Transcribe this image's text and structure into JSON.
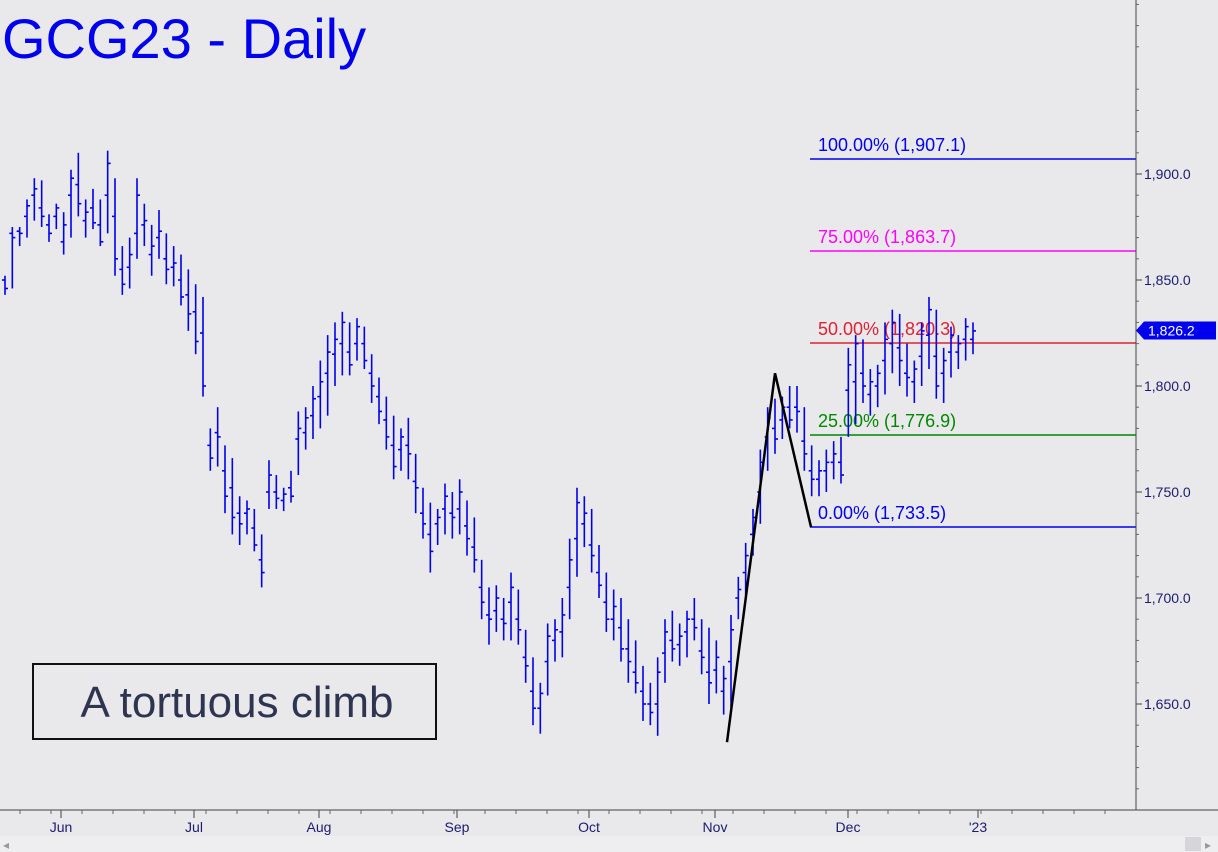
{
  "chart_data": {
    "type": "ohlc",
    "title": "GCG23 - Daily",
    "annotation": "A tortuous climb",
    "y_axis": {
      "range": [
        1605,
        1985
      ],
      "ticks": [
        1650,
        1700,
        1750,
        1800,
        1850,
        1900
      ],
      "tick_labels": [
        "1,650.0",
        "1,700.0",
        "1,750.0",
        "1,800.0",
        "1,850.0",
        "1,900.0"
      ]
    },
    "x_axis": {
      "months": [
        "Jun",
        "Jul",
        "Aug",
        "Sep",
        "Oct",
        "Nov",
        "Dec",
        "'23"
      ]
    },
    "last_price": {
      "value": 1826.2,
      "label": "1,826.2"
    },
    "fib_levels": [
      {
        "label": "100.00% (1,907.1)",
        "value": 1907.1,
        "color": "#0000ee"
      },
      {
        "label": "75.00% (1,863.7)",
        "value": 1863.7,
        "color": "#ff00ff"
      },
      {
        "label": "50.00% (1,820.3)",
        "value": 1820.3,
        "color": "#dd2233"
      },
      {
        "label": "25.00% (1,776.9)",
        "value": 1776.9,
        "color": "#008800"
      },
      {
        "label": "0.00% (1,733.5)",
        "value": 1733.5,
        "color": "#0000ee"
      }
    ],
    "pattern_points": [
      {
        "date": "Nov 3",
        "value": 1632
      },
      {
        "date": "Nov 15",
        "value": 1806
      },
      {
        "date": "Nov 23",
        "value": 1733.5
      }
    ],
    "bars": [
      [
        1852,
        1843,
        1850,
        1846
      ],
      [
        1875,
        1846,
        1872,
        1870
      ],
      [
        1875,
        1866,
        1873,
        1872
      ],
      [
        1888,
        1870,
        1880,
        1885
      ],
      [
        1898,
        1878,
        1890,
        1893
      ],
      [
        1897,
        1875,
        1884,
        1880
      ],
      [
        1881,
        1868,
        1876,
        1872
      ],
      [
        1886,
        1874,
        1880,
        1884
      ],
      [
        1882,
        1862,
        1868,
        1876
      ],
      [
        1902,
        1870,
        1890,
        1898
      ],
      [
        1910,
        1880,
        1895,
        1886
      ],
      [
        1888,
        1870,
        1878,
        1882
      ],
      [
        1893,
        1874,
        1884,
        1877
      ],
      [
        1888,
        1866,
        1876,
        1868
      ],
      [
        1911,
        1872,
        1890,
        1905
      ],
      [
        1898,
        1852,
        1880,
        1860
      ],
      [
        1866,
        1843,
        1855,
        1848
      ],
      [
        1870,
        1846,
        1856,
        1862
      ],
      [
        1898,
        1860,
        1872,
        1890
      ],
      [
        1886,
        1866,
        1876,
        1878
      ],
      [
        1876,
        1852,
        1862,
        1866
      ],
      [
        1883,
        1860,
        1870,
        1873
      ],
      [
        1872,
        1848,
        1860,
        1855
      ],
      [
        1866,
        1847,
        1856,
        1858
      ],
      [
        1862,
        1838,
        1850,
        1842
      ],
      [
        1855,
        1826,
        1843,
        1834
      ],
      [
        1848,
        1815,
        1835,
        1821
      ],
      [
        1842,
        1795,
        1825,
        1800
      ],
      [
        1780,
        1760,
        1772,
        1766
      ],
      [
        1790,
        1762,
        1778,
        1776
      ],
      [
        1772,
        1740,
        1760,
        1748
      ],
      [
        1766,
        1730,
        1752,
        1738
      ],
      [
        1748,
        1725,
        1740,
        1735
      ],
      [
        1746,
        1730,
        1740,
        1742
      ],
      [
        1742,
        1722,
        1733,
        1725
      ],
      [
        1730,
        1705,
        1718,
        1712
      ],
      [
        1765,
        1742,
        1750,
        1758
      ],
      [
        1758,
        1742,
        1750,
        1747
      ],
      [
        1752,
        1741,
        1746,
        1749
      ],
      [
        1760,
        1745,
        1752,
        1748
      ],
      [
        1788,
        1758,
        1775,
        1780
      ],
      [
        1790,
        1770,
        1778,
        1785
      ],
      [
        1800,
        1775,
        1786,
        1794
      ],
      [
        1812,
        1780,
        1795,
        1802
      ],
      [
        1824,
        1786,
        1806,
        1816
      ],
      [
        1830,
        1800,
        1815,
        1822
      ],
      [
        1835,
        1805,
        1820,
        1830
      ],
      [
        1830,
        1805,
        1816,
        1810
      ],
      [
        1832,
        1812,
        1820,
        1828
      ],
      [
        1828,
        1808,
        1820,
        1812
      ],
      [
        1815,
        1792,
        1806,
        1800
      ],
      [
        1804,
        1782,
        1795,
        1788
      ],
      [
        1795,
        1770,
        1784,
        1776
      ],
      [
        1786,
        1756,
        1772,
        1762
      ],
      [
        1780,
        1760,
        1770,
        1776
      ],
      [
        1785,
        1756,
        1772,
        1768
      ],
      [
        1768,
        1740,
        1755,
        1752
      ],
      [
        1752,
        1728,
        1740,
        1735
      ],
      [
        1745,
        1712,
        1730,
        1722
      ],
      [
        1742,
        1725,
        1735,
        1738
      ],
      [
        1754,
        1730,
        1742,
        1748
      ],
      [
        1750,
        1728,
        1740,
        1738
      ],
      [
        1756,
        1730,
        1742,
        1750
      ],
      [
        1746,
        1720,
        1734,
        1728
      ],
      [
        1738,
        1712,
        1724,
        1718
      ],
      [
        1718,
        1690,
        1705,
        1698
      ],
      [
        1705,
        1678,
        1692,
        1690
      ],
      [
        1706,
        1684,
        1694,
        1700
      ],
      [
        1700,
        1680,
        1690,
        1688
      ],
      [
        1712,
        1680,
        1698,
        1705
      ],
      [
        1704,
        1678,
        1690,
        1685
      ],
      [
        1685,
        1660,
        1672,
        1668
      ],
      [
        1672,
        1640,
        1656,
        1648
      ],
      [
        1660,
        1636,
        1648,
        1655
      ],
      [
        1688,
        1654,
        1670,
        1682
      ],
      [
        1690,
        1670,
        1680,
        1685
      ],
      [
        1700,
        1672,
        1684,
        1692
      ],
      [
        1728,
        1690,
        1705,
        1718
      ],
      [
        1752,
        1710,
        1728,
        1745
      ],
      [
        1748,
        1724,
        1735,
        1740
      ],
      [
        1742,
        1712,
        1725,
        1720
      ],
      [
        1725,
        1700,
        1712,
        1706
      ],
      [
        1712,
        1684,
        1698,
        1690
      ],
      [
        1704,
        1680,
        1690,
        1696
      ],
      [
        1700,
        1670,
        1686,
        1676
      ],
      [
        1690,
        1660,
        1676,
        1670
      ],
      [
        1680,
        1655,
        1665,
        1660
      ],
      [
        1668,
        1642,
        1656,
        1650
      ],
      [
        1660,
        1640,
        1650,
        1646
      ],
      [
        1672,
        1635,
        1650,
        1665
      ],
      [
        1690,
        1660,
        1674,
        1684
      ],
      [
        1694,
        1670,
        1680,
        1676
      ],
      [
        1688,
        1668,
        1678,
        1682
      ],
      [
        1694,
        1672,
        1684,
        1690
      ],
      [
        1700,
        1680,
        1690,
        1686
      ],
      [
        1690,
        1664,
        1675,
        1672
      ],
      [
        1686,
        1650,
        1665,
        1660
      ],
      [
        1680,
        1655,
        1666,
        1672
      ],
      [
        1668,
        1645,
        1656,
        1662
      ],
      [
        1692,
        1648,
        1670,
        1685
      ],
      [
        1710,
        1690,
        1700,
        1704
      ],
      [
        1726,
        1700,
        1712,
        1720
      ],
      [
        1742,
        1720,
        1730,
        1738
      ],
      [
        1770,
        1735,
        1750,
        1764
      ],
      [
        1790,
        1760,
        1776,
        1785
      ],
      [
        1794,
        1768,
        1780,
        1775
      ],
      [
        1795,
        1775,
        1784,
        1790
      ],
      [
        1800,
        1780,
        1790,
        1784
      ],
      [
        1800,
        1778,
        1790,
        1788
      ],
      [
        1790,
        1760,
        1774,
        1768
      ],
      [
        1772,
        1748,
        1760,
        1756
      ],
      [
        1765,
        1748,
        1756,
        1760
      ],
      [
        1770,
        1750,
        1760,
        1764
      ],
      [
        1774,
        1756,
        1764,
        1768
      ],
      [
        1776,
        1754,
        1764,
        1758
      ],
      [
        1818,
        1776,
        1798,
        1810
      ],
      [
        1824,
        1782,
        1802,
        1820
      ],
      [
        1822,
        1792,
        1806,
        1800
      ],
      [
        1808,
        1786,
        1796,
        1802
      ],
      [
        1810,
        1790,
        1800,
        1806
      ],
      [
        1830,
        1796,
        1812,
        1822
      ],
      [
        1836,
        1806,
        1820,
        1830
      ],
      [
        1834,
        1800,
        1818,
        1812
      ],
      [
        1820,
        1795,
        1806,
        1804
      ],
      [
        1812,
        1792,
        1802,
        1808
      ],
      [
        1830,
        1800,
        1814,
        1826
      ],
      [
        1842,
        1808,
        1824,
        1836
      ],
      [
        1836,
        1794,
        1814,
        1800
      ],
      [
        1818,
        1792,
        1806,
        1812
      ],
      [
        1828,
        1804,
        1816,
        1824
      ],
      [
        1824,
        1808,
        1816,
        1820
      ],
      [
        1832,
        1812,
        1822,
        1828
      ],
      [
        1830,
        1815,
        1822,
        1826
      ]
    ]
  }
}
